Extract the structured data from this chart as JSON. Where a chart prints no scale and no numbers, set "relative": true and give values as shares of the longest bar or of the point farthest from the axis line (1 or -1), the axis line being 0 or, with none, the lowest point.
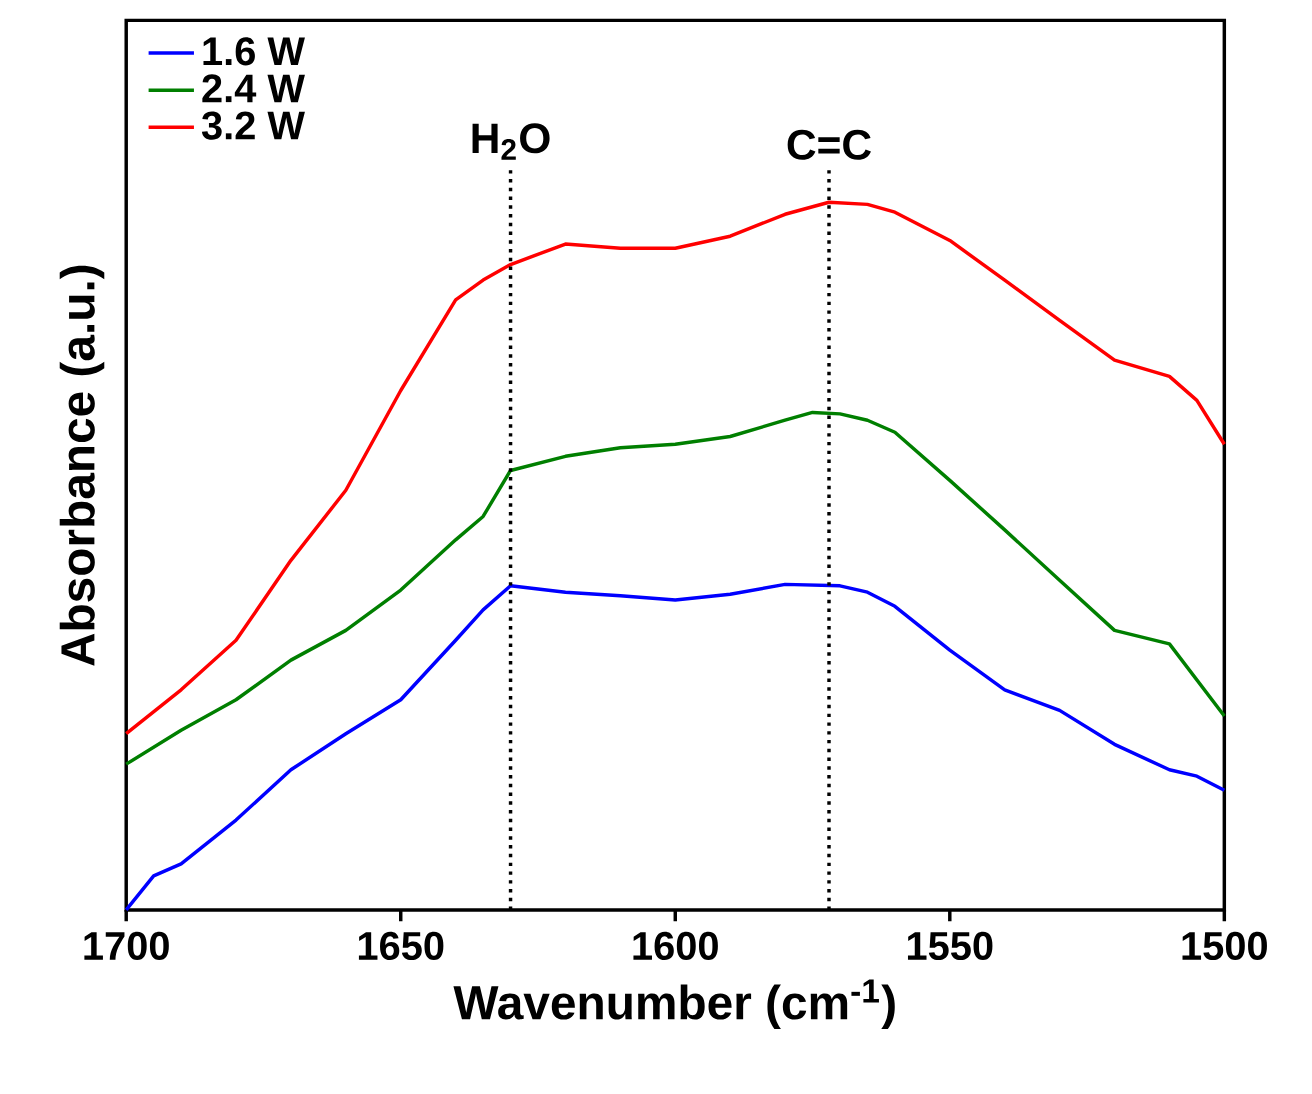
{
  "chart_data": {
    "type": "line",
    "xlabel": "Wavenumber (cm$^{-1}$)",
    "ylabel": "Absorbance (a.u.)",
    "relative": true,
    "xlim": [
      1700,
      1500
    ],
    "xticks": [
      1700,
      1650,
      1600,
      1550,
      1500
    ],
    "legend": "top left",
    "marker": "none",
    "line_style": "solid",
    "grid": false,
    "series": [
      {
        "name": "1.6 W",
        "color": "#0000ff",
        "x": [
          1700,
          1695,
          1690,
          1680,
          1670,
          1660,
          1650,
          1640,
          1635,
          1630,
          1620,
          1610,
          1600,
          1590,
          1580,
          1570,
          1565,
          1560,
          1550,
          1540,
          1530,
          1520,
          1510,
          1505,
          1500
        ],
        "values": [
          0,
          0.048,
          0.065,
          0.127,
          0.198,
          0.249,
          0.297,
          0.381,
          0.424,
          0.458,
          0.449,
          0.444,
          0.438,
          0.446,
          0.46,
          0.458,
          0.449,
          0.429,
          0.367,
          0.311,
          0.282,
          0.234,
          0.198,
          0.189,
          0.169
        ]
      },
      {
        "name": "2.4 W",
        "color": "#007f00",
        "x": [
          1700,
          1690,
          1680,
          1670,
          1660,
          1650,
          1640,
          1635,
          1630,
          1620,
          1610,
          1600,
          1590,
          1580,
          1575,
          1570,
          1565,
          1560,
          1550,
          1540,
          1530,
          1520,
          1510,
          1500
        ],
        "values": [
          0.206,
          0.254,
          0.297,
          0.353,
          0.395,
          0.452,
          0.523,
          0.556,
          0.621,
          0.641,
          0.653,
          0.658,
          0.669,
          0.692,
          0.703,
          0.701,
          0.692,
          0.675,
          0.607,
          0.537,
          0.466,
          0.395,
          0.376,
          0.274
        ]
      },
      {
        "name": "3.2 W",
        "color": "#ff0000",
        "x": [
          1700,
          1690,
          1680,
          1670,
          1660,
          1650,
          1640,
          1635,
          1630,
          1620,
          1610,
          1600,
          1590,
          1580,
          1572,
          1565,
          1560,
          1550,
          1540,
          1530,
          1520,
          1510,
          1505,
          1500
        ],
        "values": [
          0.249,
          0.311,
          0.381,
          0.494,
          0.593,
          0.734,
          0.862,
          0.89,
          0.912,
          0.941,
          0.935,
          0.935,
          0.952,
          0.983,
          1.0,
          0.997,
          0.986,
          0.946,
          0.89,
          0.833,
          0.777,
          0.754,
          0.72,
          0.658
        ]
      }
    ],
    "ref_lines": [
      {
        "axis": "x",
        "value": 1630,
        "label": "H$_{2}$O",
        "color": "#000000",
        "line_style": "dotted"
      },
      {
        "axis": "x",
        "value": 1572,
        "label": "C=C",
        "color": "#000000",
        "line_style": "dotted"
      }
    ]
  }
}
